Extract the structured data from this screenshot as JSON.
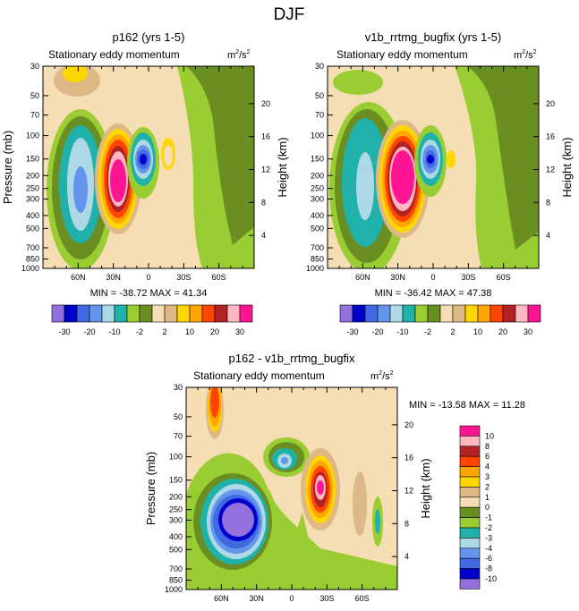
{
  "figure": {
    "title": "DJF"
  },
  "units": {
    "base": "m",
    "exp": "2",
    "sep": "/s",
    "exp2": "2"
  },
  "axes": {
    "ylabel_left": "Pressure (mb)",
    "ylabel_right": "Height (km)",
    "pressure_ticks": [
      "30",
      "50",
      "70",
      "100",
      "150",
      "200",
      "250",
      "300",
      "400",
      "500",
      "700",
      "850",
      "1000"
    ],
    "pressure_values": [
      30,
      50,
      70,
      100,
      150,
      200,
      250,
      300,
      400,
      500,
      700,
      850,
      1000
    ],
    "height_ticks": [
      "20",
      "16",
      "12",
      "8",
      "4"
    ],
    "height_values": [
      20,
      16,
      12,
      8,
      4
    ],
    "x_ticks": [
      "60N",
      "30N",
      "0",
      "30S",
      "60S"
    ],
    "x_values": [
      60,
      30,
      0,
      -30,
      -60
    ]
  },
  "colors": {
    "top_levels": [
      "#9370db",
      "#0000cd",
      "#4169e1",
      "#6495ed",
      "#add8e6",
      "#20b2aa",
      "#9acd32",
      "#6b8e23",
      "#f5deb3",
      "#deb887",
      "#ffd700",
      "#ffa500",
      "#ff4500",
      "#b22222",
      "#ffb6c1",
      "#ff1493"
    ],
    "bottom_levels": [
      "#9370db",
      "#0000cd",
      "#4169e1",
      "#6495ed",
      "#add8e6",
      "#20b2aa",
      "#9acd32",
      "#6b8e23",
      "#f5deb3",
      "#deb887",
      "#ffd700",
      "#ffa500",
      "#ff4500",
      "#b22222",
      "#ffb6c1",
      "#ff1493"
    ]
  },
  "chart_data": [
    {
      "type": "heatmap",
      "title": "p162 (yrs 1-5)",
      "subtitle": "Stationary eddy momentum",
      "units": "m2/s2",
      "xlabel": "",
      "ylabel": "Pressure (mb)",
      "ylabel_right": "Height (km)",
      "xlim": [
        90,
        -90
      ],
      "ylim": [
        1000,
        30
      ],
      "stats": "MIN = -38.72  MAX = 41.34",
      "min": -38.72,
      "max": 41.34,
      "colorbar_labels": [
        "-30",
        "-20",
        "-10",
        "-2",
        "2",
        "10",
        "20",
        "30"
      ],
      "colorbar_values": [
        -30,
        -20,
        -10,
        -2,
        2,
        10,
        20,
        30
      ],
      "features": [
        {
          "lat": 36,
          "p": 200,
          "value": 41.34,
          "sign": "positive"
        },
        {
          "lat": 6,
          "p": 150,
          "value": -38.72,
          "sign": "negative"
        },
        {
          "lat": 75,
          "p": 200,
          "value": -18,
          "sign": "negative"
        },
        {
          "lat": -10,
          "p": 160,
          "value": 10,
          "sign": "positive"
        }
      ]
    },
    {
      "type": "heatmap",
      "title": "v1b_rrtmg_bugfix (yrs 1-5)",
      "subtitle": "Stationary eddy momentum",
      "units": "m2/s2",
      "xlabel": "",
      "ylabel": "Pressure (mb)",
      "ylabel_right": "Height (km)",
      "xlim": [
        90,
        -90
      ],
      "ylim": [
        1000,
        30
      ],
      "stats": "MIN = -36.42  MAX = 47.38",
      "min": -36.42,
      "max": 47.38,
      "colorbar_labels": [
        "-30",
        "-20",
        "-10",
        "-2",
        "2",
        "10",
        "20",
        "30"
      ],
      "colorbar_values": [
        -30,
        -20,
        -10,
        -2,
        2,
        10,
        20,
        30
      ],
      "features": [
        {
          "lat": 34,
          "p": 200,
          "value": 47.38,
          "sign": "positive"
        },
        {
          "lat": 6,
          "p": 150,
          "value": -36.42,
          "sign": "negative"
        },
        {
          "lat": 75,
          "p": 200,
          "value": -12,
          "sign": "negative"
        },
        {
          "lat": -10,
          "p": 160,
          "value": 6,
          "sign": "positive"
        }
      ]
    },
    {
      "type": "heatmap",
      "title": "p162 - v1b_rrtmg_bugfix",
      "subtitle": "Stationary eddy momentum",
      "units": "m2/s2",
      "xlabel": "",
      "ylabel": "Pressure (mb)",
      "ylabel_right": "Height (km)",
      "xlim": [
        90,
        -90
      ],
      "ylim": [
        1000,
        30
      ],
      "stats": "MIN = -13.58  MAX = 11.28",
      "min": -13.58,
      "max": 11.28,
      "colorbar_labels": [
        "10",
        "8",
        "6",
        "4",
        "3",
        "2",
        "1",
        "0",
        "-1",
        "-2",
        "-3",
        "-4",
        "-6",
        "-8",
        "-10"
      ],
      "colorbar_values": [
        10,
        8,
        6,
        4,
        3,
        2,
        1,
        0,
        -1,
        -2,
        -3,
        -4,
        -6,
        -8,
        -10
      ],
      "features": [
        {
          "lat": 58,
          "p": 350,
          "value": -13.58,
          "sign": "negative"
        },
        {
          "lat": -28,
          "p": 180,
          "value": 11.28,
          "sign": "positive"
        },
        {
          "lat": 72,
          "p": 40,
          "value": 6,
          "sign": "positive"
        },
        {
          "lat": 8,
          "p": 110,
          "value": -4,
          "sign": "negative"
        }
      ]
    }
  ]
}
